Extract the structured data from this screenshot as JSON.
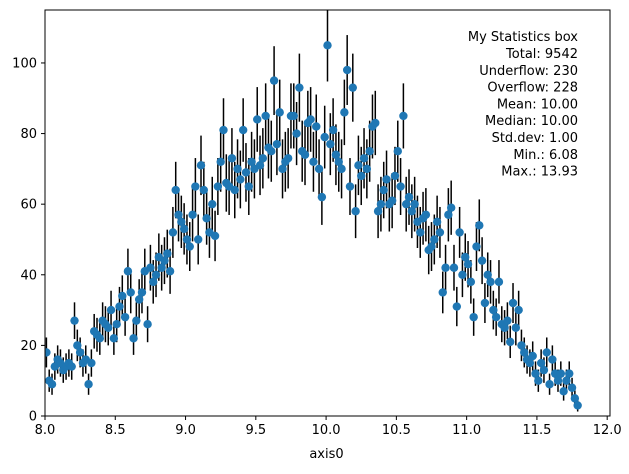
{
  "chart_data": {
    "type": "scatter",
    "xlabel": "axis0",
    "ylabel": "",
    "title": "",
    "xlim": [
      8.0,
      12.02
    ],
    "ylim": [
      0,
      115
    ],
    "xticks": [
      "8.0",
      "8.5",
      "9.0",
      "9.5",
      "10.0",
      "10.5",
      "11.0",
      "11.5",
      "12.0"
    ],
    "yticks": [
      "0",
      "20",
      "40",
      "60",
      "80",
      "100"
    ],
    "grid": false,
    "marker_color": "#1f77b4",
    "errorbar_color": "#000000",
    "errorbar_kind": "sqrt(y)",
    "stats_box": {
      "title": "My Statistics box",
      "lines": [
        "Total: 9542",
        "Underflow: 230",
        "Overflow: 228",
        "Mean: 10.00",
        "Median: 10.00",
        "Std.dev: 1.00",
        "Min.: 6.08",
        "Max.: 13.93"
      ]
    },
    "x_start": 8.01,
    "x_step": 0.02,
    "y": [
      18,
      10,
      9,
      14,
      16,
      15,
      13,
      14,
      15,
      14,
      27,
      20,
      18,
      15,
      16,
      9,
      15,
      24,
      23,
      22,
      27,
      26,
      25,
      30,
      22,
      26,
      31,
      34,
      28,
      41,
      35,
      22,
      27,
      33,
      35,
      41,
      26,
      42,
      38,
      40,
      45,
      42,
      44,
      46,
      41,
      52,
      64,
      57,
      55,
      53,
      50,
      48,
      57,
      65,
      50,
      71,
      64,
      56,
      52,
      60,
      51,
      65,
      72,
      81,
      66,
      65,
      73,
      64,
      70,
      67,
      81,
      69,
      65,
      72,
      70,
      84,
      71,
      73,
      85,
      76,
      75,
      95,
      77,
      86,
      70,
      72,
      73,
      85,
      85,
      80,
      93,
      75,
      74,
      83,
      84,
      72,
      82,
      70,
      62,
      79,
      105,
      77,
      81,
      74,
      72,
      70,
      86,
      98,
      65,
      93,
      58,
      71,
      68,
      73,
      70,
      75,
      82,
      83,
      58,
      60,
      64,
      67,
      60,
      61,
      68,
      75,
      65,
      85,
      60,
      62,
      58,
      60,
      55,
      52,
      56,
      57,
      47,
      48,
      50,
      55,
      52,
      35,
      42,
      57,
      59,
      42,
      31,
      52,
      40,
      45,
      43,
      38,
      28,
      48,
      54,
      44,
      32,
      40,
      38,
      30,
      28,
      38,
      26,
      25,
      27,
      21,
      32,
      25,
      30,
      20,
      18,
      16,
      15,
      17,
      12,
      10,
      15,
      13,
      18,
      9,
      16,
      12,
      10,
      12,
      7,
      10,
      12,
      8,
      5,
      3
    ]
  }
}
